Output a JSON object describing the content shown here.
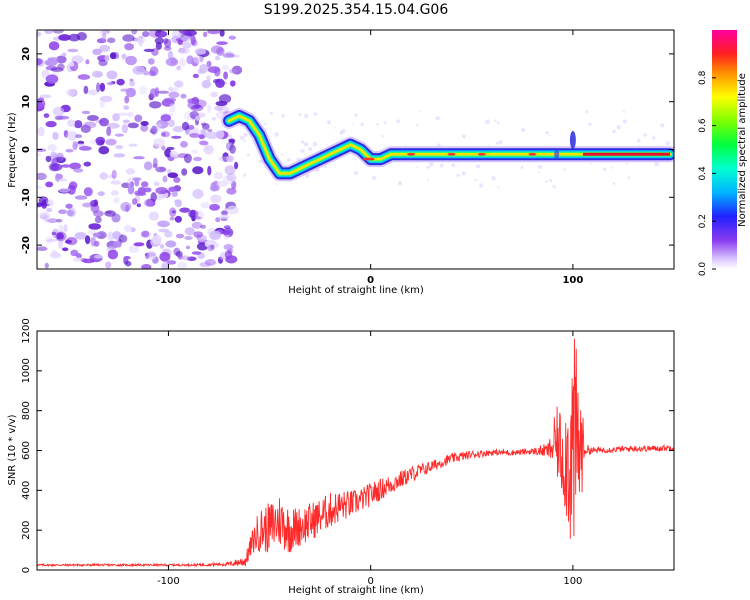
{
  "title": "S199.2025.354.15.04.G06",
  "colors": {
    "snr_line": "#ff2a2a",
    "spectrum_ridge": "#e8102a",
    "noise": "#7a2ae6",
    "axis": "#000000"
  },
  "chart_data": [
    {
      "type": "heatmap",
      "name": "spectrogram",
      "title": "S199.2025.354.15.04.G06",
      "xlabel": "Height of straight line (km)",
      "ylabel": "Frequency (Hz)",
      "xlim": [
        -165,
        150
      ],
      "ylim": [
        -25,
        25
      ],
      "xticks": [
        -100,
        0,
        100
      ],
      "yticks": [
        -20,
        -10,
        0,
        10,
        20
      ],
      "noise_region_x": [
        -165,
        -70
      ],
      "ridge": {
        "x": [
          -70,
          -65,
          -60,
          -55,
          -50,
          -45,
          -40,
          -35,
          -30,
          -25,
          -20,
          -15,
          -10,
          -5,
          0,
          5,
          10,
          20,
          40,
          60,
          80,
          90,
          95,
          100,
          110,
          130,
          148
        ],
        "y": [
          6,
          7,
          6,
          3,
          -2,
          -5,
          -5,
          -4,
          -3,
          -2,
          -1,
          0,
          1,
          0,
          -2,
          -2,
          -1,
          -1,
          -1,
          -1,
          -1,
          -1,
          -1,
          -1,
          -1,
          -1,
          -1
        ]
      },
      "colorbar": {
        "label": "Normalized spectral amplitude",
        "ticks": [
          0.0,
          0.2,
          0.4,
          0.6,
          0.8
        ],
        "range": [
          0,
          1
        ]
      }
    },
    {
      "type": "line",
      "name": "snr",
      "xlabel": "Height of straight line (km)",
      "ylabel": "SNR (10 * v/v)",
      "xlim": [
        -165,
        150
      ],
      "ylim": [
        0,
        1200
      ],
      "xticks": [
        -100,
        0,
        100
      ],
      "yticks": [
        0,
        200,
        400,
        600,
        800,
        1000,
        1200
      ],
      "series": [
        {
          "name": "SNR",
          "x": [
            -165,
            -150,
            -130,
            -110,
            -90,
            -70,
            -62,
            -58,
            -55,
            -50,
            -45,
            -40,
            -35,
            -30,
            -25,
            -20,
            -15,
            -10,
            -5,
            0,
            10,
            20,
            30,
            40,
            50,
            60,
            70,
            80,
            88,
            92,
            96,
            100,
            102,
            104,
            106,
            110,
            120,
            130,
            140,
            150
          ],
          "y": [
            25,
            25,
            25,
            25,
            25,
            30,
            45,
            150,
            200,
            210,
            250,
            200,
            220,
            240,
            270,
            300,
            320,
            330,
            350,
            380,
            430,
            480,
            520,
            560,
            580,
            590,
            590,
            595,
            600,
            640,
            560,
            600,
            620,
            610,
            605,
            600,
            605,
            610,
            610,
            615
          ],
          "noise_amplitude": [
            5,
            5,
            5,
            5,
            5,
            10,
            30,
            70,
            110,
            130,
            140,
            120,
            100,
            100,
            90,
            90,
            80,
            70,
            60,
            60,
            50,
            40,
            30,
            25,
            20,
            15,
            15,
            15,
            40,
            180,
            260,
            600,
            500,
            300,
            30,
            15,
            15,
            15,
            15,
            15
          ]
        }
      ]
    }
  ]
}
